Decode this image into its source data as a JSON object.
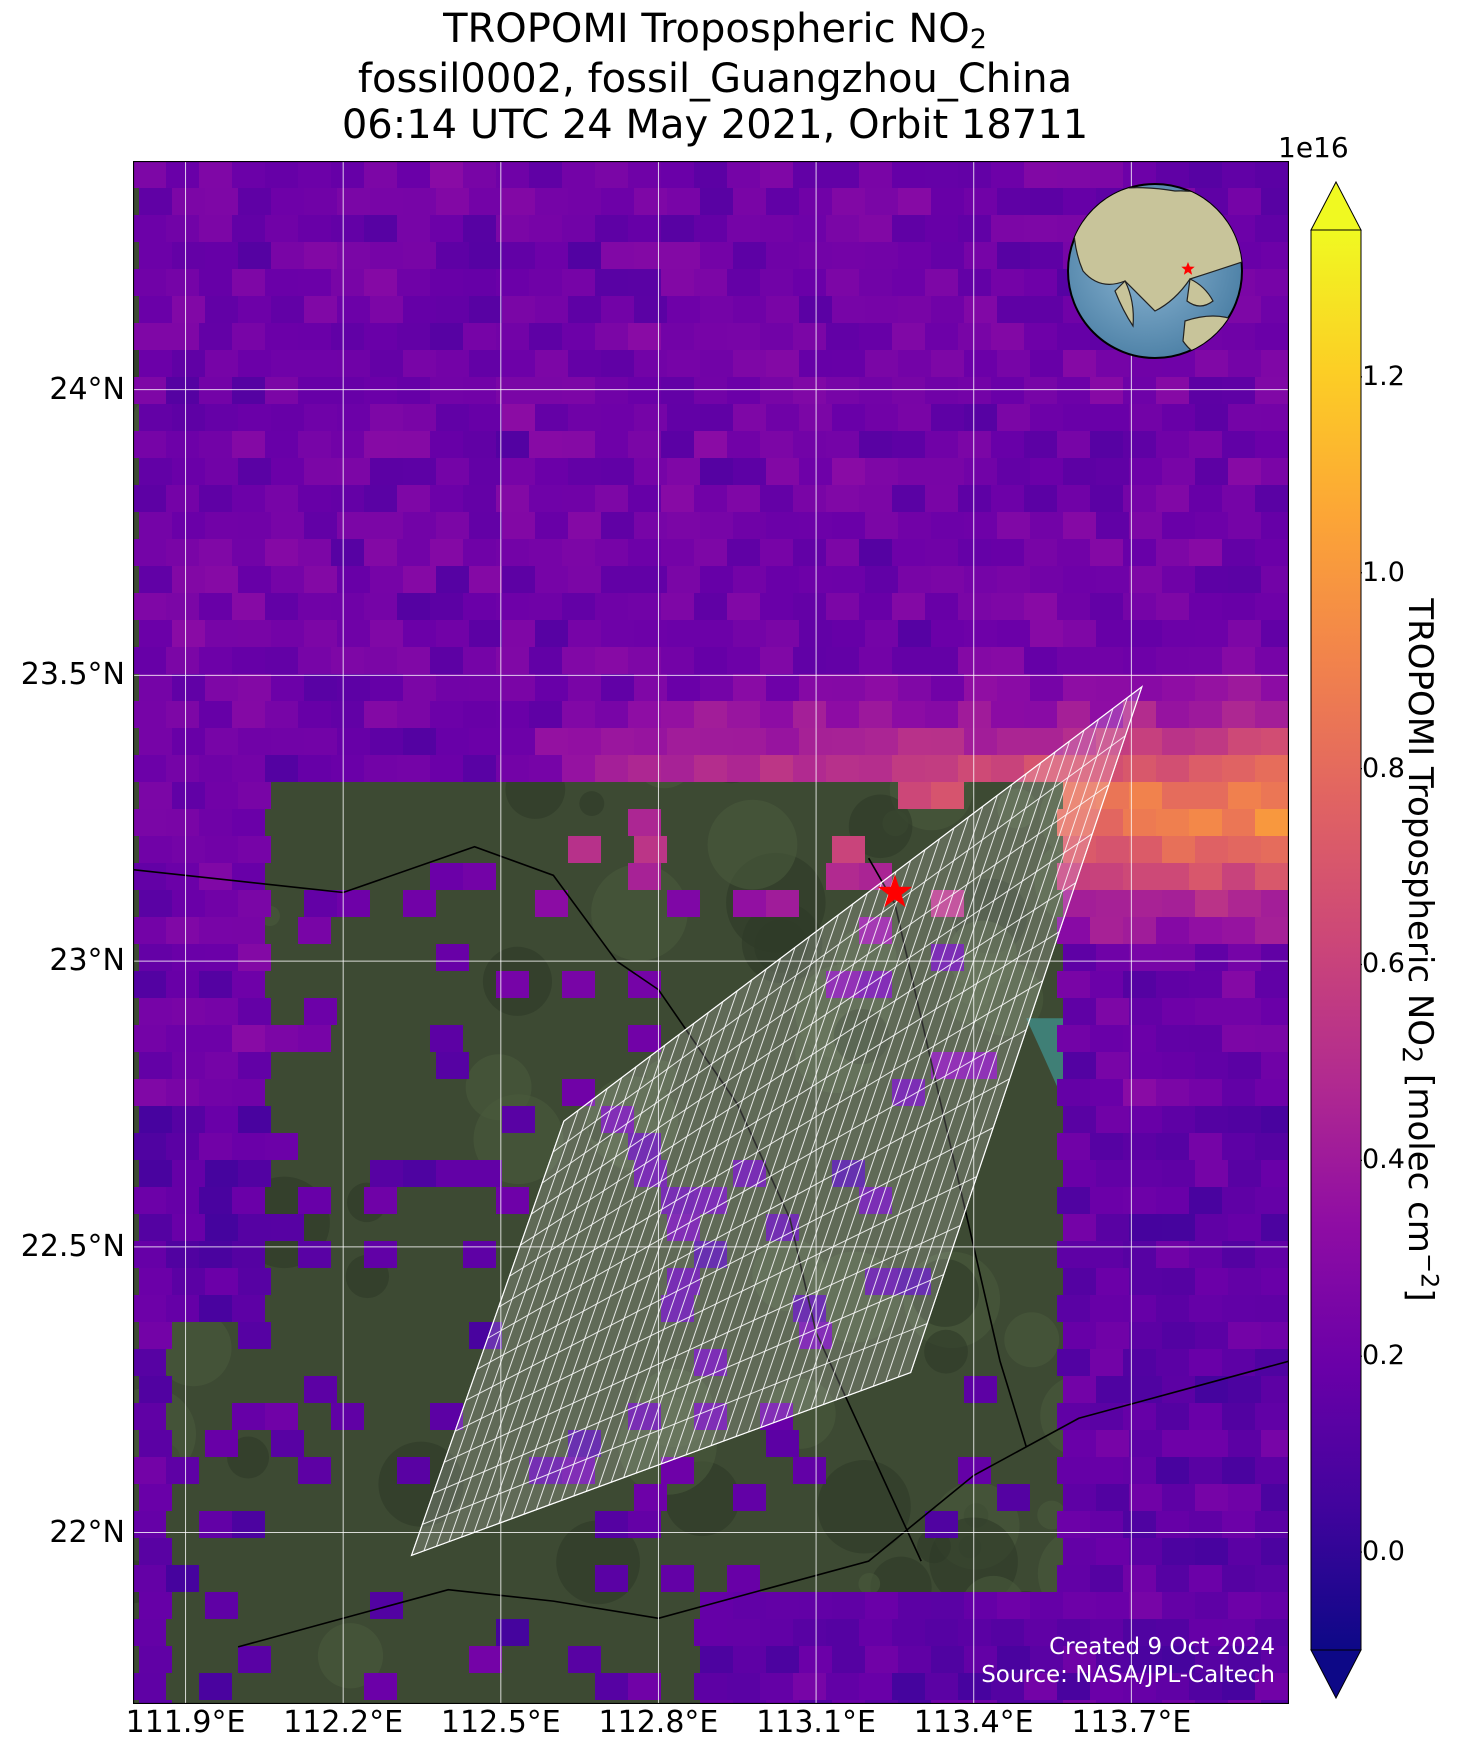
{
  "title": {
    "line1_prefix": "TROPOMI Tropospheric NO",
    "line1_sub": "2",
    "line2": "fossil0002, fossil_Guangzhou_China",
    "line3": "06:14 UTC 24 May 2021, Orbit 18711"
  },
  "map": {
    "lat_ticks": [
      "24°N",
      "23.5°N",
      "23°N",
      "22.5°N",
      "22°N"
    ],
    "lon_ticks": [
      "111.9°E",
      "112.2°E",
      "112.5°E",
      "112.8°E",
      "113.1°E",
      "113.4°E",
      "113.7°E"
    ],
    "lon_range": [
      111.8,
      114.0
    ],
    "lat_range": [
      21.7,
      24.4
    ],
    "target_marker": {
      "lon": 113.25,
      "lat": 23.12,
      "color": "#ff0000",
      "icon": "star"
    },
    "inset_globe_marker_color": "#ff0000"
  },
  "colorbar": {
    "exponent_label": "1e16",
    "ticks": [
      "0.0",
      "0.2",
      "0.4",
      "0.6",
      "0.8",
      "1.0",
      "1.2"
    ],
    "range": [
      -0.1,
      1.35
    ],
    "colormap": "plasma",
    "label_prefix": "TROPOMI Tropospheric NO",
    "label_sub": "2",
    "label_mid": " [molec cm",
    "label_sup": "−2",
    "label_suffix": "]"
  },
  "credits": {
    "created": "Created 9 Oct 2024",
    "source": "Source: NASA/JPL-Caltech"
  },
  "colors": {
    "land": "#3d4a33",
    "water": "#3f7f76",
    "grid": "#ffffff",
    "target_area": "#ffffff"
  }
}
